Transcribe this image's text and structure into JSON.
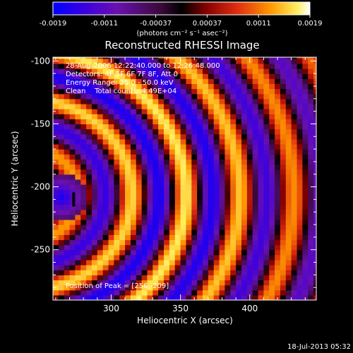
{
  "chart_data": {
    "type": "heatmap",
    "title": "Reconstructed RHESSI Image",
    "xlabel": "Heliocentric X (arcsec)",
    "ylabel": "Heliocentric Y (arcsec)",
    "xlim": [
      258,
      448
    ],
    "ylim": [
      -290,
      -97
    ],
    "x_ticks": [
      300,
      350,
      400
    ],
    "y_ticks": [
      -100,
      -150,
      -200,
      -250
    ],
    "colorbar": {
      "tick_labels": [
        "-0.0019",
        "-0.0011",
        "-0.00037",
        "0.00037",
        "0.0011",
        "0.0019"
      ],
      "units": "(photons cm⁻² s⁻¹ asec⁻²)",
      "range": [
        -0.0019,
        0.0019
      ],
      "colormap": [
        "#0000ff",
        "#5a00c8",
        "#7a1890",
        "#000000",
        "#c01010",
        "#ff4000",
        "#ff9a00",
        "#ffee60",
        "#ffffff"
      ]
    },
    "annotations": [
      "28-Aug-2006 12:22:40.000 to 12:26:48.000",
      "Detectors: 4F 5F 6F 7F 8F, Att 0",
      "Energy Range: 25.0 - 50.0 keV",
      "Clean    Total counts: 4.49E+04"
    ],
    "peak_text": "Position of Peak = [256,-209]",
    "peak": [
      256,
      -209
    ]
  },
  "timestamp": "18-Jul-2013 05:32"
}
